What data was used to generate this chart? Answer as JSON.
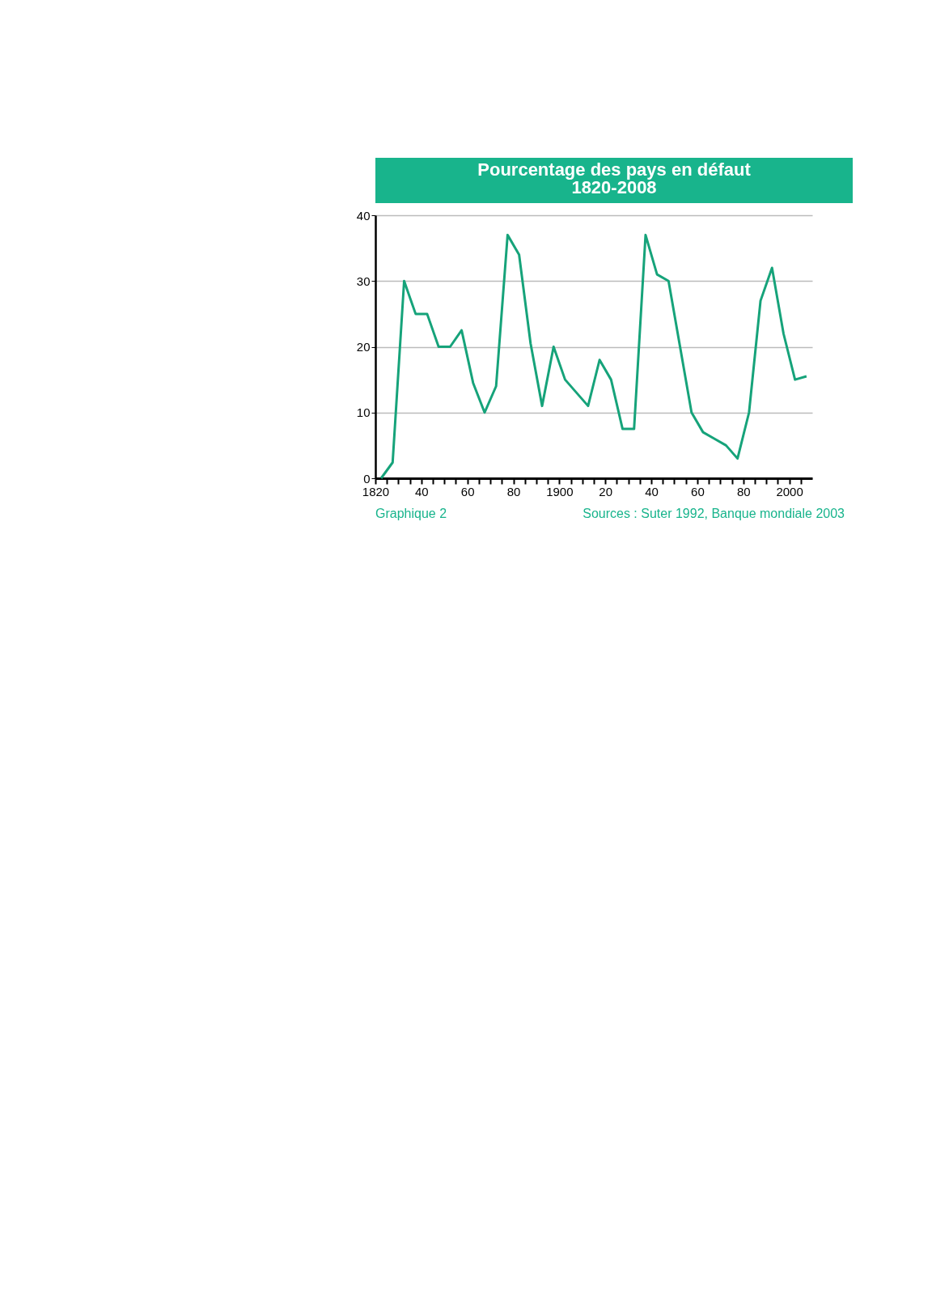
{
  "chart_data": {
    "type": "line",
    "title": [
      "Pourcentage des pays en défaut",
      "1820-2008"
    ],
    "annotations": [
      "Graphique 2",
      "Sources : Suter 1992, Banque mondiale 2003"
    ],
    "x": [
      1822.5,
      1827.5,
      1832.5,
      1837.5,
      1842.5,
      1847.5,
      1852.5,
      1857.5,
      1862.5,
      1867.5,
      1872.5,
      1877.5,
      1882.5,
      1887.5,
      1892.5,
      1897.5,
      1902.5,
      1907.5,
      1912.5,
      1917.5,
      1922.5,
      1927.5,
      1932.5,
      1937.5,
      1942.5,
      1947.5,
      1952.5,
      1957.5,
      1962.5,
      1967.5,
      1972.5,
      1977.5,
      1982.5,
      1987.5,
      1992.5,
      1997.5,
      2002.5,
      2007.5
    ],
    "series": [
      {
        "color": "#16a37a",
        "values": [
          0,
          2.4,
          30,
          25,
          25,
          20,
          20,
          22.5,
          14.5,
          10,
          14,
          37,
          34,
          20.5,
          11,
          20,
          15,
          13,
          11,
          18,
          15,
          7.5,
          7.5,
          37,
          31,
          30,
          20,
          10,
          7,
          6,
          5,
          3,
          10,
          27,
          32,
          22,
          15,
          15.5
        ]
      }
    ],
    "xlim": [
      1820,
      2010
    ],
    "ylim": [
      0,
      40
    ],
    "xticks": [
      1820,
      {
        "value": 1825,
        "label": null
      },
      {
        "value": 1830,
        "label": null
      },
      {
        "value": 1835,
        "label": null
      },
      {
        "value": 1840,
        "label": "40"
      },
      {
        "value": 1845,
        "label": null
      },
      {
        "value": 1850,
        "label": null
      },
      {
        "value": 1855,
        "label": null
      },
      {
        "value": 1860,
        "label": "60"
      },
      {
        "value": 1865,
        "label": null
      },
      {
        "value": 1870,
        "label": null
      },
      {
        "value": 1875,
        "label": null
      },
      {
        "value": 1880,
        "label": "80"
      },
      {
        "value": 1885,
        "label": null
      },
      {
        "value": 1890,
        "label": null
      },
      {
        "value": 1895,
        "label": null
      },
      1900,
      {
        "value": 1905,
        "label": null
      },
      {
        "value": 1910,
        "label": null
      },
      {
        "value": 1915,
        "label": null
      },
      {
        "value": 1920,
        "label": "20"
      },
      {
        "value": 1925,
        "label": null
      },
      {
        "value": 1930,
        "label": null
      },
      {
        "value": 1935,
        "label": null
      },
      {
        "value": 1940,
        "label": "40"
      },
      {
        "value": 1945,
        "label": null
      },
      {
        "value": 1950,
        "label": null
      },
      {
        "value": 1955,
        "label": null
      },
      {
        "value": 1960,
        "label": "60"
      },
      {
        "value": 1965,
        "label": null
      },
      {
        "value": 1970,
        "label": null
      },
      {
        "value": 1975,
        "label": null
      },
      {
        "value": 1980,
        "label": "80"
      },
      {
        "value": 1985,
        "label": null
      },
      {
        "value": 1990,
        "label": null
      },
      {
        "value": 1995,
        "label": null
      },
      2000,
      {
        "value": 2005,
        "label": null
      }
    ],
    "yticks": [
      0,
      10,
      20,
      30,
      40
    ],
    "grid": "y",
    "marker": "none",
    "line_style": "solid"
  }
}
